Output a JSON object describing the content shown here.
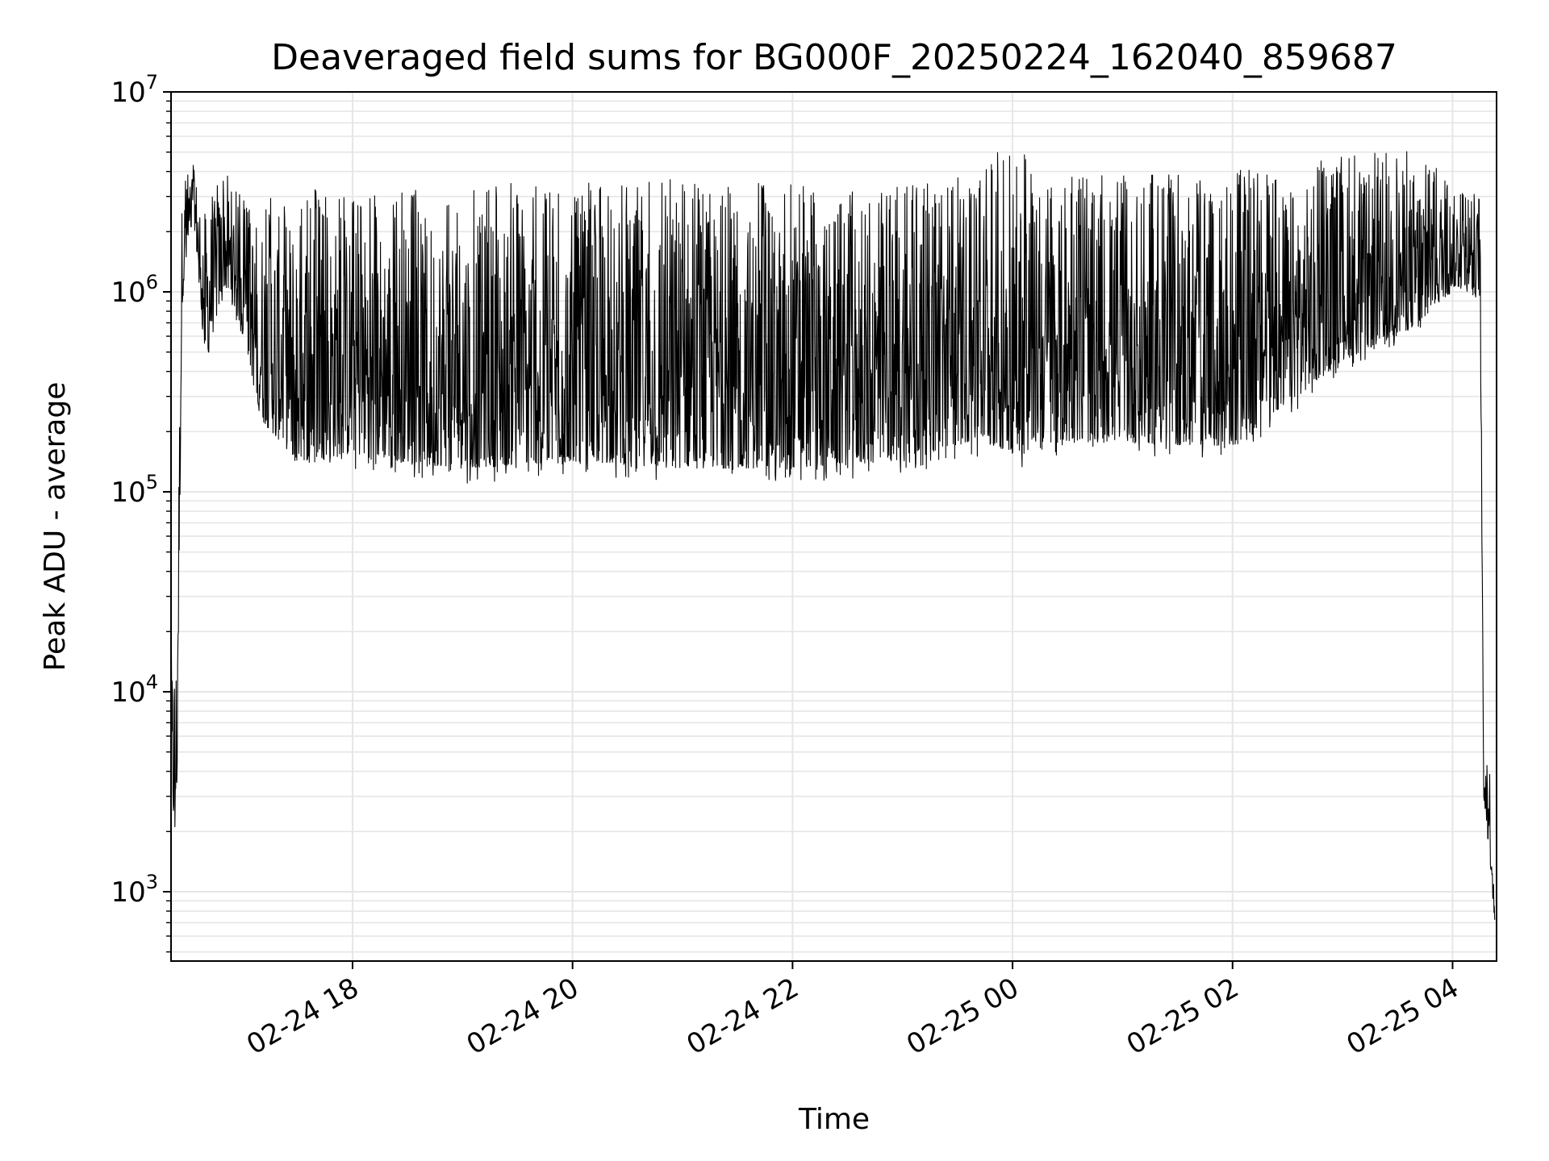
{
  "chart_data": {
    "type": "line",
    "title": "Deaveraged field sums for BG000F_20250224_162040_859687",
    "xlabel": "Time",
    "ylabel": "Peak ADU - average",
    "yscale": "log",
    "ylim": [
      450,
      10000000
    ],
    "xlim": [
      "2025-02-24T16:21",
      "2025-02-25T04:24"
    ],
    "x_ticks": [
      {
        "t": "2025-02-24T18:00",
        "label": "02-24 18"
      },
      {
        "t": "2025-02-24T20:00",
        "label": "02-24 20"
      },
      {
        "t": "2025-02-24T22:00",
        "label": "02-24 22"
      },
      {
        "t": "2025-02-25T00:00",
        "label": "02-25 00"
      },
      {
        "t": "2025-02-25T02:00",
        "label": "02-25 02"
      },
      {
        "t": "2025-02-25T04:00",
        "label": "02-25 04"
      }
    ],
    "y_ticks": [
      {
        "value": 1000,
        "base": "10",
        "exp": "3"
      },
      {
        "value": 10000,
        "base": "10",
        "exp": "4"
      },
      {
        "value": 100000,
        "base": "10",
        "exp": "5"
      },
      {
        "value": 1000000,
        "base": "10",
        "exp": "6"
      },
      {
        "value": 10000000,
        "base": "10",
        "exp": "7"
      }
    ],
    "grid": true,
    "minor_grid": true,
    "line_color": "#000000",
    "grid_color": "#e6e6e6",
    "series": [
      {
        "envelope": [
          {
            "t": "2025-02-24T16:21",
            "low": 2000,
            "high": 20000
          },
          {
            "t": "2025-02-24T16:24",
            "low": 1900,
            "high": 22000
          },
          {
            "t": "2025-02-24T16:27",
            "low": 800000,
            "high": 3500000
          },
          {
            "t": "2025-02-24T16:33",
            "low": 2500000,
            "high": 4500000
          },
          {
            "t": "2025-02-24T16:40",
            "low": 400000,
            "high": 3000000
          },
          {
            "t": "2025-02-24T16:50",
            "low": 1000000,
            "high": 4000000
          },
          {
            "t": "2025-02-24T17:00",
            "low": 600000,
            "high": 3000000
          },
          {
            "t": "2025-02-24T17:10",
            "low": 200000,
            "high": 3000000
          },
          {
            "t": "2025-02-24T17:30",
            "low": 120000,
            "high": 3500000
          },
          {
            "t": "2025-02-24T18:00",
            "low": 130000,
            "high": 3000000
          },
          {
            "t": "2025-02-24T19:00",
            "low": 110000,
            "high": 3500000
          },
          {
            "t": "2025-02-24T20:00",
            "low": 120000,
            "high": 3500000
          },
          {
            "t": "2025-02-24T21:00",
            "low": 110000,
            "high": 3800000
          },
          {
            "t": "2025-02-24T22:00",
            "low": 110000,
            "high": 3500000
          },
          {
            "t": "2025-02-24T23:00",
            "low": 120000,
            "high": 3500000
          },
          {
            "t": "2025-02-24T23:35",
            "low": 150000,
            "high": 3800000
          },
          {
            "t": "2025-02-25T00:05",
            "low": 130000,
            "high": 6500000
          },
          {
            "t": "2025-02-25T00:10",
            "low": 150000,
            "high": 4000000
          },
          {
            "t": "2025-02-25T01:00",
            "low": 150000,
            "high": 3800000
          },
          {
            "t": "2025-02-25T02:00",
            "low": 140000,
            "high": 4000000
          },
          {
            "t": "2025-02-25T03:00",
            "low": 400000,
            "high": 4800000
          },
          {
            "t": "2025-02-25T03:40",
            "low": 600000,
            "high": 5200000
          },
          {
            "t": "2025-02-25T04:00",
            "low": 1000000,
            "high": 3500000
          },
          {
            "t": "2025-02-25T04:15",
            "low": 900000,
            "high": 3000000
          },
          {
            "t": "2025-02-25T04:17",
            "low": 3000,
            "high": 3000
          },
          {
            "t": "2025-02-25T04:20",
            "low": 1500,
            "high": 6000
          },
          {
            "t": "2025-02-25T04:23",
            "low": 700,
            "high": 1000
          }
        ]
      }
    ]
  }
}
